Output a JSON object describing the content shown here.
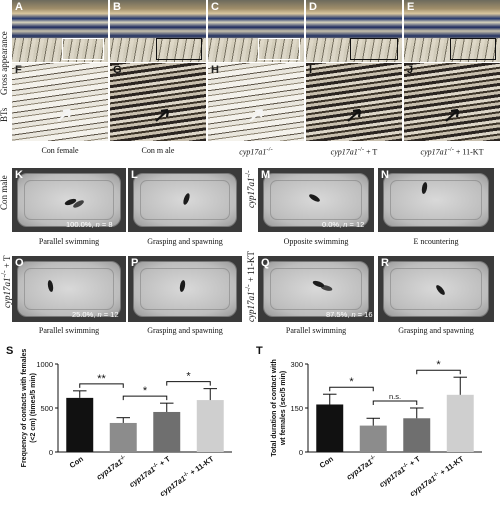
{
  "figure": {
    "rows": {
      "gross": "Gross appearance",
      "bts": "BTs",
      "con_male": "Con male",
      "cyp17a1": "cyp17a1",
      "cyp17a1_sup": "-/-",
      "cyp_t": "cyp17a1",
      "cyp_t_sup": "-/-",
      "cyp_t_suffix": " + T",
      "cyp_kt": "cyp17a1",
      "cyp_kt_sup": "-/-",
      "cyp_kt_suffix": " + 11-KT"
    },
    "panel_letters": [
      "A",
      "B",
      "C",
      "D",
      "E",
      "F",
      "G",
      "H",
      "I",
      "J",
      "K",
      "L",
      "M",
      "N",
      "O",
      "P",
      "Q",
      "R",
      "S",
      "T"
    ],
    "fin_captions": [
      {
        "main": "Con female",
        "sup": "",
        "suffix": ""
      },
      {
        "main": "Con m ale",
        "sup": "",
        "suffix": ""
      },
      {
        "main": "cyp17a1",
        "sup": "-/-",
        "suffix": ""
      },
      {
        "main": "cyp17a1",
        "sup": "-/-",
        "suffix": " + T"
      },
      {
        "main": "cyp17a1",
        "sup": "-/-",
        "suffix": " + 11-KT"
      }
    ],
    "tank_captions": [
      "Parallel swimming",
      "Grasping and spawning",
      "Opposite swimming",
      "E ncountering",
      "Parallel swimming",
      "Grasping and spawning",
      "Parallel swimming",
      "Grasping and spawning"
    ],
    "tank_percents": [
      {
        "pct": "100.0%",
        "n": "n",
        "val": " = 8"
      },
      {
        "pct": "0.0%",
        "n": "n",
        "val": " = 12"
      },
      {
        "pct": "25.0%",
        "n": "n",
        "val": " = 12"
      },
      {
        "pct": "87.5%",
        "n": "n",
        "val": " = 16"
      }
    ]
  },
  "chart_data": [
    {
      "type": "bar",
      "panel": "S",
      "ylabel": "Frequency of contacts with females (<2 cm) (times/5 min)",
      "categories": [
        "Con",
        "cyp17a1-/-",
        "cyp17a1-/- + T",
        "cyp17a1-/- + 11-KT"
      ],
      "values": [
        615,
        330,
        455,
        590
      ],
      "errors": [
        80,
        60,
        100,
        130
      ],
      "ylim": [
        0,
        1000
      ],
      "yticks": [
        "0",
        "500",
        "1000"
      ],
      "colors": [
        "#111111",
        "#8c8c8c",
        "#6f6f6f",
        "#cfcfcf"
      ],
      "significance": [
        {
          "from": 0,
          "to": 1,
          "label": "**"
        },
        {
          "from": 1,
          "to": 2,
          "label": "*"
        },
        {
          "from": 2,
          "to": 3,
          "label": "*"
        }
      ]
    },
    {
      "type": "bar",
      "panel": "T",
      "ylabel": "Total duration of contact with wt females (sec/5 min)",
      "categories": [
        "Con",
        "cyp17a1-/-",
        "cyp17a1-/- + T",
        "cyp17a1-/- + 11-KT"
      ],
      "values": [
        162,
        90,
        115,
        195
      ],
      "errors": [
        35,
        25,
        35,
        60
      ],
      "ylim": [
        0,
        300
      ],
      "yticks": [
        "0",
        "150",
        "300"
      ],
      "colors": [
        "#111111",
        "#8c8c8c",
        "#6f6f6f",
        "#cfcfcf"
      ],
      "significance": [
        {
          "from": 0,
          "to": 1,
          "label": "*"
        },
        {
          "from": 1,
          "to": 2,
          "label": "n.s."
        },
        {
          "from": 2,
          "to": 3,
          "label": "*"
        }
      ]
    }
  ]
}
